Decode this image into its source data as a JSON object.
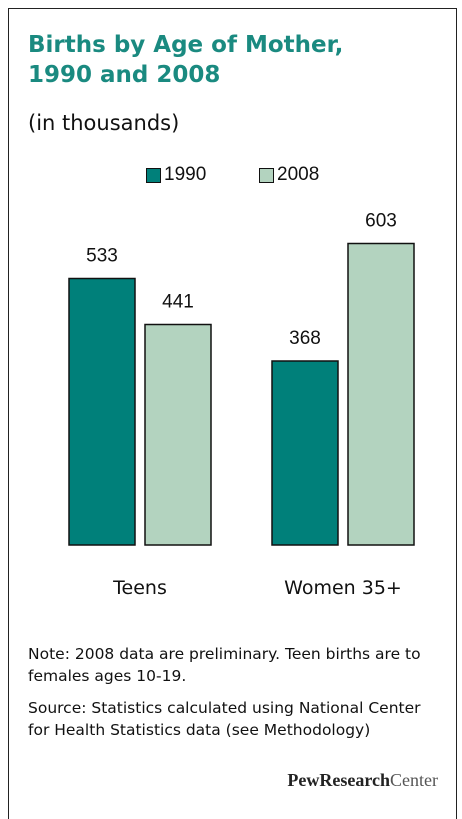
{
  "title_line1": "Births by Age of Mother,",
  "title_line2": "1990 and 2008",
  "subtitle": "(in thousands)",
  "note": "Note: 2008 data are preliminary. Teen births are to females ages 10-19.",
  "source": "Source: Statistics calculated using National Center for Health Statistics data (see Methodology)",
  "brand": {
    "part1": "PewResearch",
    "part2": "Center"
  },
  "colors": {
    "s1990": "#00807a",
    "s2008": "#b3d3bf",
    "title": "#1a8a80"
  },
  "chart_data": {
    "type": "bar",
    "categories": [
      "Teens",
      "Women 35+"
    ],
    "series": [
      {
        "name": "1990",
        "values": [
          533,
          368
        ]
      },
      {
        "name": "2008",
        "values": [
          441,
          603
        ]
      }
    ],
    "data_labels": true,
    "legend": "top"
  }
}
